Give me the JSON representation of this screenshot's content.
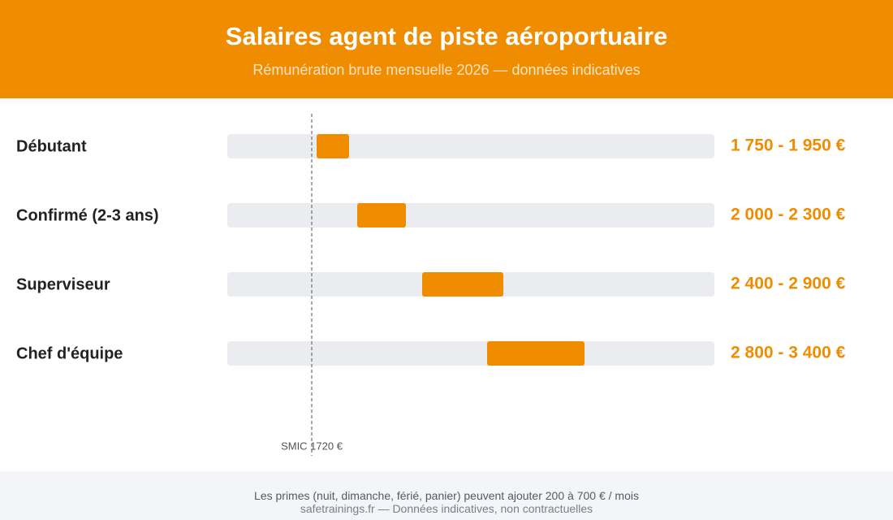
{
  "header": {
    "title": "Salaires agent de piste aéroportuaire",
    "subtitle": "Rémunération brute mensuelle 2026 — données indicatives"
  },
  "chart_data": {
    "type": "bar",
    "orientation": "horizontal-range",
    "unit": "€",
    "xlim": [
      1200,
      4200
    ],
    "categories": [
      "Débutant",
      "Confirmé (2-3 ans)",
      "Superviseur",
      "Chef d'équipe"
    ],
    "ranges": [
      [
        1750,
        1950
      ],
      [
        2000,
        2300
      ],
      [
        2400,
        2900
      ],
      [
        2800,
        3400
      ]
    ],
    "range_labels": [
      "1 750 - 1 950 €",
      "2 000 - 2 300 €",
      "2 400 - 2 900 €",
      "2 800 - 3 400 €"
    ],
    "reference_line": {
      "value": 1720,
      "label": "SMIC 1720 €",
      "style": "dashed"
    },
    "colors": {
      "bar": "#f08c00",
      "track": "#ebecf0",
      "range_label": "#f08c00",
      "category_label": "#222222",
      "reference_line": "#888888"
    }
  },
  "footer": {
    "note": "Les primes (nuit, dimanche, férié, panier) peuvent ajouter 200 à 700 € / mois",
    "source": "safetrainings.fr — Données indicatives, non contractuelles"
  }
}
